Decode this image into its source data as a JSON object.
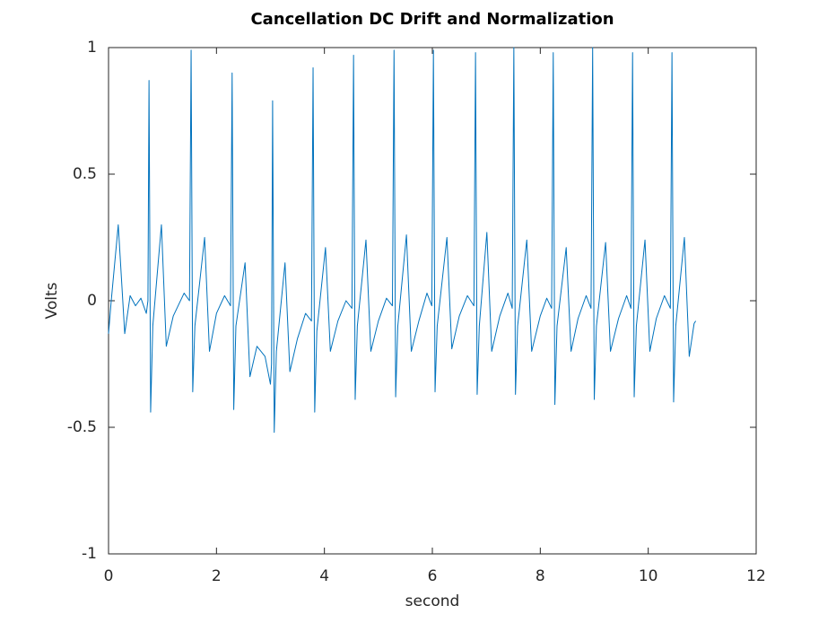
{
  "chart_data": {
    "type": "line",
    "title": "Cancellation DC Drift and Normalization",
    "xlabel": "second",
    "ylabel": "Volts",
    "xlim": [
      0,
      12
    ],
    "ylim": [
      -1,
      1
    ],
    "xticks": [
      0,
      2,
      4,
      6,
      8,
      10,
      12
    ],
    "yticks": [
      -1,
      -0.5,
      0,
      0.5,
      1
    ],
    "color": "#0072bd",
    "x": [
      0,
      0.05,
      0.18,
      0.25,
      0.3,
      0.4,
      0.5,
      0.6,
      0.7,
      0.73,
      0.75,
      0.78,
      0.82,
      0.98,
      1.07,
      1.2,
      1.4,
      1.5,
      1.53,
      1.56,
      1.6,
      1.78,
      1.87,
      2.0,
      2.15,
      2.26,
      2.29,
      2.32,
      2.36,
      2.53,
      2.62,
      2.75,
      2.9,
      3.0,
      3.02,
      3.04,
      3.07,
      3.11,
      3.27,
      3.36,
      3.5,
      3.65,
      3.76,
      3.79,
      3.82,
      3.86,
      4.02,
      4.11,
      4.25,
      4.4,
      4.51,
      4.54,
      4.57,
      4.61,
      4.77,
      4.86,
      5.0,
      5.15,
      5.26,
      5.29,
      5.32,
      5.36,
      5.52,
      5.61,
      5.75,
      5.9,
      5.99,
      6.02,
      6.05,
      6.09,
      6.27,
      6.36,
      6.5,
      6.65,
      6.77,
      6.8,
      6.83,
      6.87,
      7.01,
      7.1,
      7.25,
      7.4,
      7.48,
      7.51,
      7.54,
      7.58,
      7.75,
      7.84,
      8.0,
      8.12,
      8.21,
      8.24,
      8.27,
      8.31,
      8.48,
      8.57,
      8.7,
      8.85,
      8.94,
      8.97,
      9.0,
      9.04,
      9.21,
      9.3,
      9.45,
      9.6,
      9.68,
      9.71,
      9.74,
      9.78,
      9.94,
      10.03,
      10.15,
      10.3,
      10.41,
      10.44,
      10.47,
      10.51,
      10.67,
      10.76,
      10.85,
      10.88
    ],
    "values": [
      -0.13,
      0.0,
      0.3,
      0.05,
      -0.13,
      0.02,
      -0.02,
      0.01,
      -0.05,
      0.0,
      0.87,
      -0.44,
      -0.1,
      0.3,
      -0.18,
      -0.06,
      0.03,
      0.0,
      0.99,
      -0.36,
      -0.1,
      0.25,
      -0.2,
      -0.05,
      0.02,
      -0.02,
      0.9,
      -0.43,
      -0.1,
      0.15,
      -0.3,
      -0.18,
      -0.22,
      -0.33,
      -0.25,
      0.79,
      -0.52,
      -0.2,
      0.15,
      -0.28,
      -0.15,
      -0.05,
      -0.08,
      0.92,
      -0.44,
      -0.12,
      0.21,
      -0.2,
      -0.08,
      0.0,
      -0.03,
      0.97,
      -0.39,
      -0.1,
      0.24,
      -0.2,
      -0.08,
      0.01,
      -0.02,
      0.99,
      -0.38,
      -0.1,
      0.26,
      -0.2,
      -0.08,
      0.03,
      -0.02,
      0.99,
      -0.36,
      -0.1,
      0.25,
      -0.19,
      -0.06,
      0.02,
      -0.02,
      0.98,
      -0.37,
      -0.1,
      0.27,
      -0.2,
      -0.06,
      0.03,
      -0.03,
      1.0,
      -0.37,
      -0.1,
      0.24,
      -0.2,
      -0.06,
      0.01,
      -0.03,
      0.98,
      -0.41,
      -0.1,
      0.21,
      -0.2,
      -0.07,
      0.02,
      -0.03,
      1.0,
      -0.39,
      -0.1,
      0.23,
      -0.2,
      -0.07,
      0.02,
      -0.03,
      0.98,
      -0.38,
      -0.1,
      0.24,
      -0.2,
      -0.07,
      0.02,
      -0.03,
      0.98,
      -0.4,
      -0.1,
      0.25,
      -0.22,
      -0.09,
      -0.08
    ]
  }
}
